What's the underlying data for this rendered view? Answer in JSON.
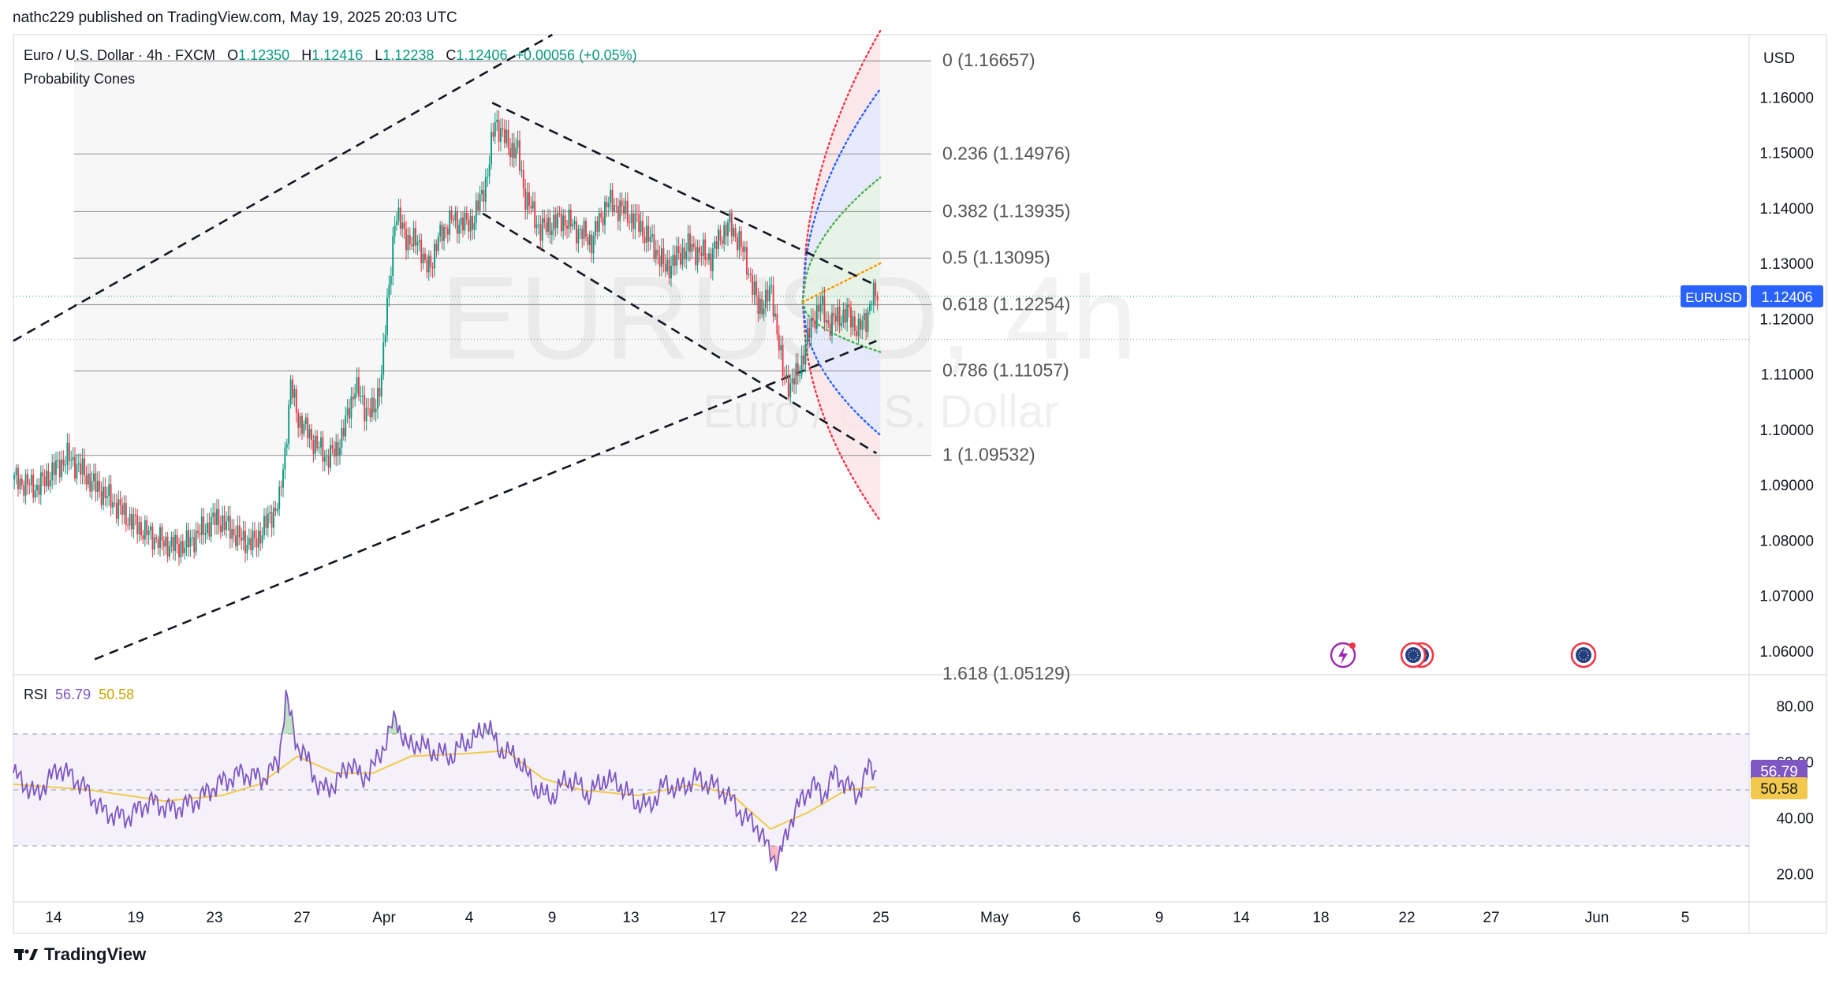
{
  "header": {
    "publisher": "nathc229 published on TradingView.com, May 19, 2025 20:03 UTC"
  },
  "legend": {
    "symbol": "Euro / U.S. Dollar · 4h · FXCM",
    "O_label": "O",
    "O": "1.12350",
    "H_label": "H",
    "H": "1.12416",
    "L_label": "L",
    "L": "1.12238",
    "C_label": "C",
    "C": "1.12406",
    "change": "+0.00056 (+0.05%)",
    "indicator": "Probability Cones"
  },
  "watermark": {
    "ticker": "EURUSD, 4h",
    "name": "Euro / U.S. Dollar"
  },
  "price_axis": {
    "currency": "USD",
    "ticks": [
      "1.16000",
      "1.15000",
      "1.14000",
      "1.13000",
      "1.12000",
      "1.11000",
      "1.10000",
      "1.09000",
      "1.08000",
      "1.07000",
      "1.06000"
    ]
  },
  "price_tag": {
    "symbol": "EURUSD",
    "price": "1.12406"
  },
  "rsi": {
    "label": "RSI",
    "value": "56.79",
    "ma_value": "50.58",
    "ticks": [
      "80.00",
      "60.00",
      "40.00",
      "20.00"
    ],
    "colors": {
      "rsi": "#7e57c2",
      "ma": "#f2c94c",
      "band": "#ede7f6"
    }
  },
  "time_axis": {
    "labels": [
      "14",
      "19",
      "23",
      "27",
      "Apr",
      "4",
      "9",
      "13",
      "17",
      "22",
      "25",
      "May",
      "6",
      "9",
      "14",
      "18",
      "22",
      "27",
      "Jun",
      "5"
    ]
  },
  "fib_levels": [
    {
      "ratio": "0",
      "price": "1.16657",
      "text": "0 (1.16657)"
    },
    {
      "ratio": "0.236",
      "price": "1.14976",
      "text": "0.236 (1.14976)"
    },
    {
      "ratio": "0.382",
      "price": "1.13935",
      "text": "0.382 (1.13935)"
    },
    {
      "ratio": "0.5",
      "price": "1.13095",
      "text": "0.5 (1.13095)"
    },
    {
      "ratio": "0.618",
      "price": "1.12254",
      "text": "0.618 (1.12254)"
    },
    {
      "ratio": "0.786",
      "price": "1.11057",
      "text": "0.786 (1.11057)"
    },
    {
      "ratio": "1",
      "price": "1.09532",
      "text": "1 (1.09532)"
    },
    {
      "ratio": "1.618",
      "price": "1.05129",
      "text": "1.618 (1.05129)"
    }
  ],
  "footer": {
    "brand": "TradingView"
  },
  "colors": {
    "up": "#089981",
    "down": "#f23645",
    "accent": "#2962ff"
  },
  "chart_data": {
    "type": "candlestick",
    "timeframe": "4h",
    "symbol": "EURUSD",
    "ylim": [
      1.0557,
      1.1713
    ],
    "x_labels": [
      "14",
      "19",
      "23",
      "27",
      "Apr",
      "4",
      "9",
      "13",
      "17",
      "22",
      "25",
      "May",
      "6",
      "9",
      "14",
      "18",
      "22",
      "27",
      "Jun",
      "5"
    ],
    "price_path": [
      [
        0,
        1.091
      ],
      [
        7,
        1.09
      ],
      [
        12,
        1.0895
      ],
      [
        22,
        1.093
      ],
      [
        28,
        1.095
      ],
      [
        33,
        1.0935
      ],
      [
        42,
        1.09
      ],
      [
        52,
        1.087
      ],
      [
        60,
        1.084
      ],
      [
        68,
        1.0818
      ],
      [
        76,
        1.08
      ],
      [
        84,
        1.079
      ],
      [
        90,
        1.079
      ],
      [
        100,
        1.082
      ],
      [
        107,
        1.084
      ],
      [
        114,
        1.082
      ],
      [
        120,
        1.08
      ],
      [
        127,
        1.0795
      ],
      [
        133,
        1.083
      ],
      [
        140,
        1.087
      ],
      [
        143,
        1.096
      ],
      [
        146,
        1.108
      ],
      [
        150,
        1.102
      ],
      [
        154,
        1.1
      ],
      [
        160,
        1.097
      ],
      [
        165,
        1.095
      ],
      [
        170,
        1.096
      ],
      [
        175,
        1.101
      ],
      [
        180,
        1.108
      ],
      [
        185,
        1.104
      ],
      [
        190,
        1.103
      ],
      [
        194,
        1.11
      ],
      [
        197,
        1.122
      ],
      [
        201,
        1.138
      ],
      [
        205,
        1.137
      ],
      [
        209,
        1.133
      ],
      [
        213,
        1.135
      ],
      [
        217,
        1.129
      ],
      [
        221,
        1.131
      ],
      [
        226,
        1.136
      ],
      [
        232,
        1.138
      ],
      [
        238,
        1.137
      ],
      [
        243,
        1.138
      ],
      [
        250,
        1.146
      ],
      [
        254,
        1.156
      ],
      [
        258,
        1.153
      ],
      [
        262,
        1.151
      ],
      [
        266,
        1.15
      ],
      [
        270,
        1.142
      ],
      [
        274,
        1.139
      ],
      [
        278,
        1.136
      ],
      [
        283,
        1.137
      ],
      [
        290,
        1.138
      ],
      [
        298,
        1.136
      ],
      [
        305,
        1.134
      ],
      [
        313,
        1.141
      ],
      [
        320,
        1.14
      ],
      [
        330,
        1.137
      ],
      [
        338,
        1.133
      ],
      [
        344,
        1.129
      ],
      [
        350,
        1.131
      ],
      [
        356,
        1.133
      ],
      [
        362,
        1.132
      ],
      [
        368,
        1.131
      ],
      [
        373,
        1.135
      ],
      [
        378,
        1.137
      ],
      [
        383,
        1.134
      ],
      [
        387,
        1.13
      ],
      [
        390,
        1.126
      ],
      [
        393,
        1.122
      ],
      [
        396,
        1.123
      ],
      [
        400,
        1.125
      ],
      [
        403,
        1.118
      ],
      [
        406,
        1.11
      ],
      [
        410,
        1.108
      ],
      [
        414,
        1.11
      ],
      [
        418,
        1.115
      ],
      [
        422,
        1.12
      ],
      [
        426,
        1.1225
      ],
      [
        430,
        1.119
      ],
      [
        434,
        1.12
      ],
      [
        440,
        1.121
      ],
      [
        446,
        1.118
      ],
      [
        450,
        1.12
      ],
      [
        453,
        1.124
      ],
      [
        456,
        1.124
      ]
    ],
    "rsi_path": [
      [
        0,
        56
      ],
      [
        12,
        48
      ],
      [
        24,
        58
      ],
      [
        36,
        52
      ],
      [
        48,
        42
      ],
      [
        60,
        40
      ],
      [
        72,
        46
      ],
      [
        84,
        43
      ],
      [
        96,
        46
      ],
      [
        108,
        52
      ],
      [
        120,
        56
      ],
      [
        132,
        54
      ],
      [
        140,
        60
      ],
      [
        144,
        83
      ],
      [
        150,
        66
      ],
      [
        156,
        60
      ],
      [
        162,
        50
      ],
      [
        170,
        52
      ],
      [
        178,
        60
      ],
      [
        184,
        54
      ],
      [
        190,
        58
      ],
      [
        196,
        66
      ],
      [
        202,
        76
      ],
      [
        208,
        65
      ],
      [
        214,
        67
      ],
      [
        220,
        64
      ],
      [
        226,
        63
      ],
      [
        232,
        62
      ],
      [
        238,
        67
      ],
      [
        244,
        68
      ],
      [
        250,
        74
      ],
      [
        256,
        65
      ],
      [
        262,
        63
      ],
      [
        268,
        60
      ],
      [
        274,
        52
      ],
      [
        280,
        48
      ],
      [
        286,
        48
      ],
      [
        292,
        54
      ],
      [
        298,
        52
      ],
      [
        304,
        48
      ],
      [
        312,
        54
      ],
      [
        320,
        52
      ],
      [
        328,
        46
      ],
      [
        336,
        44
      ],
      [
        344,
        52
      ],
      [
        352,
        50
      ],
      [
        360,
        54
      ],
      [
        368,
        52
      ],
      [
        374,
        50
      ],
      [
        380,
        46
      ],
      [
        386,
        40
      ],
      [
        392,
        38
      ],
      [
        398,
        30
      ],
      [
        404,
        24
      ],
      [
        410,
        38
      ],
      [
        416,
        46
      ],
      [
        422,
        52
      ],
      [
        428,
        48
      ],
      [
        434,
        56
      ],
      [
        440,
        52
      ],
      [
        446,
        48
      ],
      [
        452,
        58
      ],
      [
        456,
        57
      ]
    ],
    "rsi_ma_path": [
      [
        0,
        52
      ],
      [
        40,
        50
      ],
      [
        80,
        46
      ],
      [
        110,
        48
      ],
      [
        130,
        52
      ],
      [
        150,
        62
      ],
      [
        170,
        56
      ],
      [
        190,
        56
      ],
      [
        210,
        62
      ],
      [
        240,
        63
      ],
      [
        260,
        64
      ],
      [
        280,
        54
      ],
      [
        300,
        50
      ],
      [
        330,
        48
      ],
      [
        360,
        52
      ],
      [
        380,
        48
      ],
      [
        400,
        36
      ],
      [
        420,
        42
      ],
      [
        440,
        50
      ],
      [
        456,
        51
      ]
    ],
    "rsi_ylim": [
      10,
      90
    ],
    "rsi_bands": [
      30,
      50,
      70
    ],
    "channel_lines": [
      {
        "name": "upper-channel",
        "p1": [
          0,
          1.116
        ],
        "p2": [
          345,
          1.183
        ],
        "style": "dashed"
      },
      {
        "name": "lower-channel",
        "p1": [
          43,
          1.0585
        ],
        "p2": [
          456,
          1.116
        ],
        "style": "dashed"
      },
      {
        "name": "upper-wedge",
        "p1": [
          253,
          1.159
        ],
        "p2": [
          456,
          1.126
        ],
        "style": "dashed"
      },
      {
        "name": "lower-wedge",
        "p1": [
          248,
          1.139
        ],
        "p2": [
          456,
          1.0957
        ],
        "style": "dashed"
      }
    ],
    "probability_cone": {
      "start_bar": 417,
      "start_price": 1.123,
      "end_bar": 458,
      "mean_end": 1.13,
      "sigma1": [
        1.1455,
        1.114
      ],
      "sigma2": [
        1.1615,
        1.099
      ],
      "sigma3": [
        1.172,
        1.0835
      ],
      "colors": {
        "mean": "#ff9800",
        "sigma1": "#4caf50",
        "sigma2": "#2962ff",
        "sigma3": "#f23645"
      }
    }
  }
}
